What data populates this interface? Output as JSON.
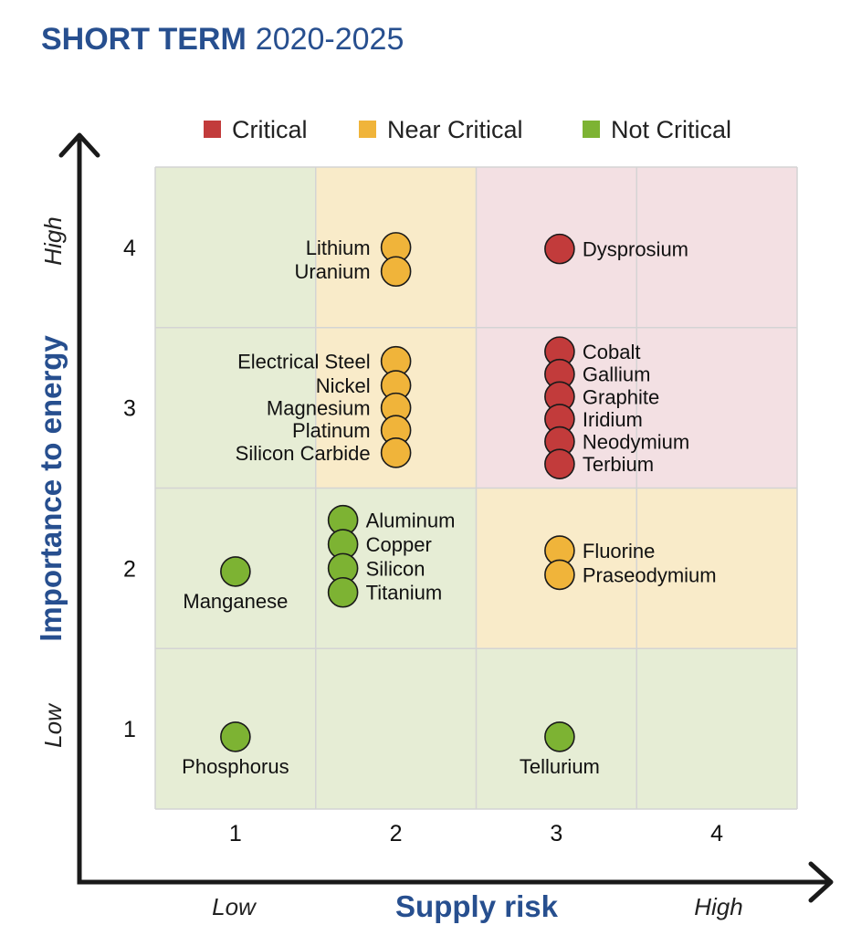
{
  "header": {
    "title_bold": "SHORT TERM",
    "title_years": "2020-2025"
  },
  "chart_data": {
    "type": "scatter",
    "xlabel": "Supply risk",
    "ylabel": "Importance to energy",
    "x_low": "Low",
    "x_high": "High",
    "y_low": "Low",
    "y_high": "High",
    "xlim": [
      0.5,
      4.5
    ],
    "ylim": [
      0.5,
      4.5
    ],
    "x_ticks": [
      "1",
      "2",
      "3",
      "4"
    ],
    "y_ticks": [
      "1",
      "2",
      "3",
      "4"
    ],
    "grid": true,
    "legend_position": "top",
    "legend": [
      {
        "key": "critical",
        "label": "Critical",
        "color": "#c23b3b"
      },
      {
        "key": "near",
        "label": "Near Critical",
        "color": "#f0b43a"
      },
      {
        "key": "not",
        "label": "Not Critical",
        "color": "#7db333"
      }
    ],
    "zone_colors": {
      "critical": "#f3e0e3",
      "near": "#f9ebc9",
      "not": "#e6edd5"
    },
    "zones": [
      {
        "x": 1,
        "y": 4,
        "zone": "not"
      },
      {
        "x": 2,
        "y": 4,
        "zone": "near"
      },
      {
        "x": 3,
        "y": 4,
        "zone": "critical"
      },
      {
        "x": 4,
        "y": 4,
        "zone": "critical"
      },
      {
        "x": 1,
        "y": 3,
        "zone": "not"
      },
      {
        "x": 2,
        "y": 3,
        "zone": "near"
      },
      {
        "x": 3,
        "y": 3,
        "zone": "critical"
      },
      {
        "x": 4,
        "y": 3,
        "zone": "critical"
      },
      {
        "x": 1,
        "y": 2,
        "zone": "not"
      },
      {
        "x": 2,
        "y": 2,
        "zone": "not"
      },
      {
        "x": 3,
        "y": 2,
        "zone": "near"
      },
      {
        "x": 4,
        "y": 2,
        "zone": "near"
      },
      {
        "x": 1,
        "y": 1,
        "zone": "not"
      },
      {
        "x": 2,
        "y": 1,
        "zone": "not"
      },
      {
        "x": 3,
        "y": 1,
        "zone": "not"
      },
      {
        "x": 4,
        "y": 1,
        "zone": "not"
      }
    ],
    "points": [
      {
        "name": "Lithium",
        "x": 2.0,
        "y": 4.0,
        "category": "near"
      },
      {
        "name": "Uranium",
        "x": 2.0,
        "y": 3.85,
        "category": "near"
      },
      {
        "name": "Dysprosium",
        "x": 3.02,
        "y": 3.99,
        "category": "critical"
      },
      {
        "name": "Electrical Steel",
        "x": 2.0,
        "y": 3.29,
        "category": "near"
      },
      {
        "name": "Nickel",
        "x": 2.0,
        "y": 3.14,
        "category": "near"
      },
      {
        "name": "Magnesium",
        "x": 2.0,
        "y": 3.0,
        "category": "near"
      },
      {
        "name": "Platinum",
        "x": 2.0,
        "y": 2.86,
        "category": "near"
      },
      {
        "name": "Silicon Carbide",
        "x": 2.0,
        "y": 2.72,
        "category": "near"
      },
      {
        "name": "Cobalt",
        "x": 3.02,
        "y": 3.35,
        "category": "critical"
      },
      {
        "name": "Gallium",
        "x": 3.02,
        "y": 3.21,
        "category": "critical"
      },
      {
        "name": "Graphite",
        "x": 3.02,
        "y": 3.07,
        "category": "critical"
      },
      {
        "name": "Iridium",
        "x": 3.02,
        "y": 2.93,
        "category": "critical"
      },
      {
        "name": "Neodymium",
        "x": 3.02,
        "y": 2.79,
        "category": "critical"
      },
      {
        "name": "Terbium",
        "x": 3.02,
        "y": 2.65,
        "category": "critical"
      },
      {
        "name": "Manganese",
        "x": 1.0,
        "y": 1.98,
        "category": "not"
      },
      {
        "name": "Aluminum",
        "x": 1.67,
        "y": 2.3,
        "category": "not"
      },
      {
        "name": "Copper",
        "x": 1.67,
        "y": 2.15,
        "category": "not"
      },
      {
        "name": "Silicon",
        "x": 1.67,
        "y": 2.0,
        "category": "not"
      },
      {
        "name": "Titanium",
        "x": 1.67,
        "y": 1.85,
        "category": "not"
      },
      {
        "name": "Fluorine",
        "x": 3.02,
        "y": 2.11,
        "category": "near"
      },
      {
        "name": "Praseodymium",
        "x": 3.02,
        "y": 1.96,
        "category": "near"
      },
      {
        "name": "Phosphorus",
        "x": 1.0,
        "y": 0.95,
        "category": "not"
      },
      {
        "name": "Tellurium",
        "x": 3.02,
        "y": 0.95,
        "category": "not"
      }
    ]
  }
}
